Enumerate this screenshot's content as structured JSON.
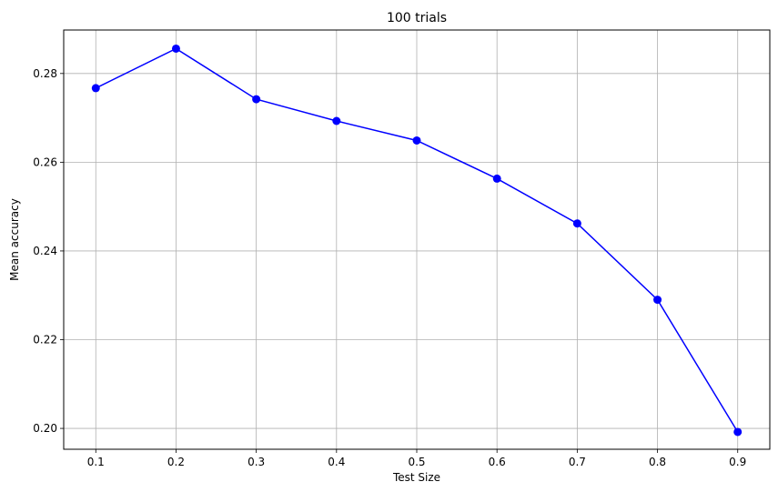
{
  "chart_data": {
    "type": "line",
    "title": "100 trials",
    "xlabel": "Test Size",
    "ylabel": "Mean accuracy",
    "x": [
      0.1,
      0.2,
      0.3,
      0.4,
      0.5,
      0.6,
      0.7,
      0.8,
      0.9
    ],
    "x_tick_labels": [
      "0.1",
      "0.2",
      "0.3",
      "0.4",
      "0.5",
      "0.6",
      "0.7",
      "0.8",
      "0.9"
    ],
    "y_ticks": [
      0.2,
      0.22,
      0.24,
      0.26,
      0.28
    ],
    "y_tick_labels": [
      "0.20",
      "0.22",
      "0.24",
      "0.26",
      "0.28"
    ],
    "xlim": [
      0.06,
      0.94
    ],
    "ylim": [
      0.1953,
      0.2898
    ],
    "grid": true,
    "series": [
      {
        "values": [
          0.2767,
          0.2856,
          0.2742,
          0.2693,
          0.2649,
          0.2563,
          0.2462,
          0.229,
          0.1992
        ],
        "color": "#0000ff",
        "marker": "circle"
      }
    ],
    "colors": {
      "grid": "#b0b0b0",
      "axes": "#000000",
      "series": "#0000ff"
    }
  }
}
